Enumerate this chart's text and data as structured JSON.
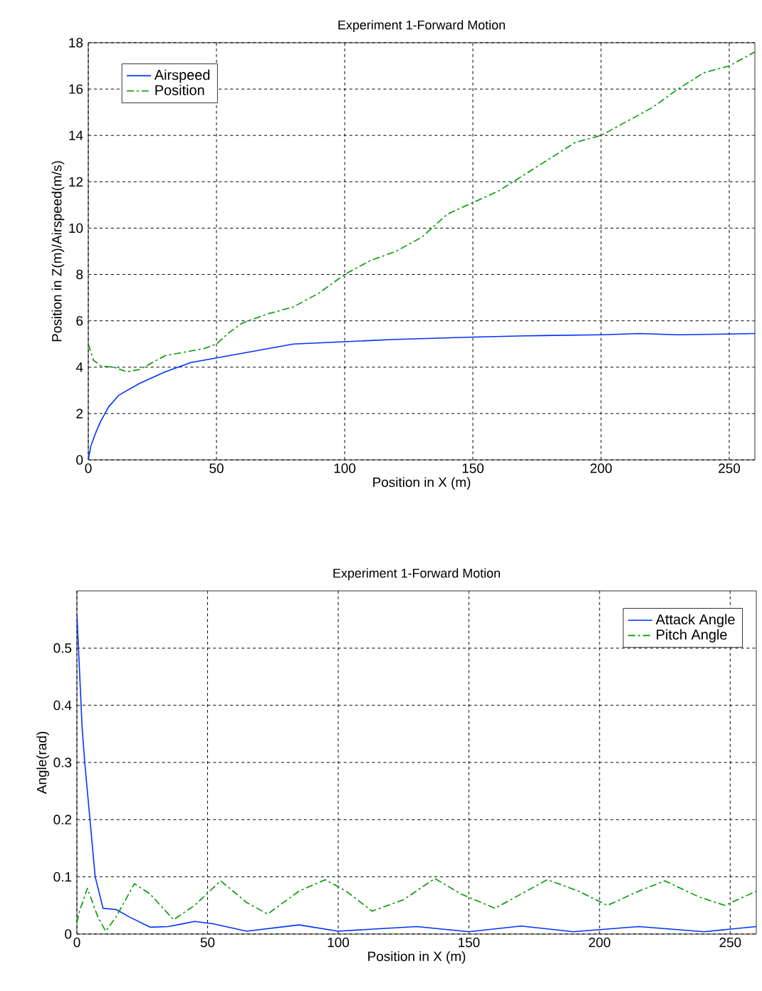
{
  "chart_data": [
    {
      "type": "line",
      "title": "Experiment 1-Forward Motion",
      "xlabel": "Position in X (m)",
      "ylabel": "Position in Z(m)/Airspeed(m/s)",
      "xlim": [
        0,
        260
      ],
      "ylim": [
        0,
        18
      ],
      "xticks": [
        0,
        50,
        100,
        150,
        200,
        250
      ],
      "yticks": [
        0,
        2,
        4,
        6,
        8,
        10,
        12,
        14,
        16,
        18
      ],
      "grid": true,
      "legend": "top left",
      "series": [
        {
          "name": "Airspeed",
          "color": "#0033ff",
          "line_style": "solid",
          "x": [
            0,
            1,
            3,
            5,
            8,
            12,
            20,
            30,
            40,
            50,
            60,
            70,
            80,
            100,
            120,
            150,
            170,
            200,
            215,
            230,
            260
          ],
          "values": [
            0,
            0.6,
            1.2,
            1.7,
            2.3,
            2.8,
            3.3,
            3.8,
            4.2,
            4.4,
            4.6,
            4.8,
            5.0,
            5.1,
            5.2,
            5.3,
            5.35,
            5.4,
            5.45,
            5.4,
            5.45
          ]
        },
        {
          "name": "Position",
          "color": "#009900",
          "line_style": "dashed",
          "x": [
            0,
            2,
            5,
            10,
            15,
            20,
            25,
            30,
            40,
            45,
            50,
            55,
            60,
            70,
            80,
            90,
            100,
            110,
            120,
            130,
            140,
            150,
            160,
            170,
            180,
            190,
            200,
            210,
            220,
            230,
            240,
            250,
            260
          ],
          "values": [
            5.0,
            4.3,
            4.05,
            4.0,
            3.8,
            3.9,
            4.2,
            4.5,
            4.7,
            4.8,
            5.0,
            5.5,
            5.9,
            6.3,
            6.6,
            7.2,
            8.0,
            8.6,
            9.0,
            9.6,
            10.6,
            11.1,
            11.6,
            12.3,
            13.0,
            13.7,
            14.0,
            14.6,
            15.2,
            16.0,
            16.7,
            17.0,
            17.6
          ]
        }
      ]
    },
    {
      "type": "line",
      "title": "Experiment 1-Forward Motion",
      "xlabel": "Position in X (m)",
      "ylabel": "Angle(rad)",
      "xlim": [
        0,
        260
      ],
      "ylim": [
        0,
        0.6
      ],
      "xticks": [
        0,
        50,
        100,
        150,
        200,
        250
      ],
      "yticks": [
        0,
        0.1,
        0.2,
        0.3,
        0.4,
        0.5
      ],
      "grid": true,
      "legend": "top right",
      "series": [
        {
          "name": "Attack Angle",
          "color": "#0033ff",
          "line_style": "solid",
          "x": [
            0,
            1,
            2,
            3,
            5,
            7,
            10,
            15,
            20,
            28,
            35,
            45,
            52,
            65,
            85,
            100,
            130,
            150,
            170,
            190,
            215,
            240,
            260
          ],
          "values": [
            0.56,
            0.46,
            0.36,
            0.3,
            0.2,
            0.1,
            0.045,
            0.043,
            0.03,
            0.012,
            0.013,
            0.022,
            0.018,
            0.005,
            0.016,
            0.005,
            0.013,
            0.004,
            0.014,
            0.004,
            0.013,
            0.004,
            0.013
          ]
        },
        {
          "name": "Pitch Angle",
          "color": "#009900",
          "line_style": "dashed",
          "x": [
            0,
            1,
            4,
            8,
            11,
            15,
            22,
            28,
            37,
            45,
            55,
            65,
            73,
            85,
            95,
            103,
            113,
            125,
            137,
            147,
            160,
            170,
            180,
            192,
            203,
            215,
            225,
            238,
            248,
            260
          ],
          "values": [
            0.02,
            0.04,
            0.08,
            0.03,
            0.005,
            0.03,
            0.088,
            0.07,
            0.025,
            0.05,
            0.093,
            0.055,
            0.035,
            0.075,
            0.095,
            0.075,
            0.04,
            0.06,
            0.097,
            0.07,
            0.045,
            0.07,
            0.095,
            0.075,
            0.05,
            0.075,
            0.093,
            0.065,
            0.05,
            0.075
          ]
        }
      ]
    }
  ]
}
